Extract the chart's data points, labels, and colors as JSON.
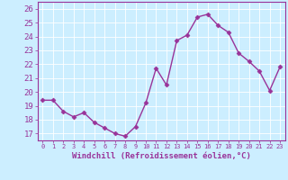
{
  "x": [
    0,
    1,
    2,
    3,
    4,
    5,
    6,
    7,
    8,
    9,
    10,
    11,
    12,
    13,
    14,
    15,
    16,
    17,
    18,
    19,
    20,
    21,
    22,
    23
  ],
  "y": [
    19.4,
    19.4,
    18.6,
    18.2,
    18.5,
    17.8,
    17.4,
    17.0,
    16.8,
    17.5,
    19.2,
    21.7,
    20.5,
    23.7,
    24.1,
    25.4,
    25.6,
    24.8,
    24.3,
    22.8,
    22.2,
    21.5,
    20.1,
    21.8
  ],
  "line_color": "#993399",
  "marker": "D",
  "markersize": 2.5,
  "linewidth": 1.0,
  "xlabel": "Windchill (Refroidissement éolien,°C)",
  "ylim": [
    16.5,
    26.5
  ],
  "yticks": [
    17,
    18,
    19,
    20,
    21,
    22,
    23,
    24,
    25,
    26
  ],
  "xlim": [
    -0.5,
    23.5
  ],
  "xticks": [
    0,
    1,
    2,
    3,
    4,
    5,
    6,
    7,
    8,
    9,
    10,
    11,
    12,
    13,
    14,
    15,
    16,
    17,
    18,
    19,
    20,
    21,
    22,
    23
  ],
  "bg_color": "#cceeff",
  "grid_color": "#ffffff",
  "label_color": "#993399",
  "tick_color": "#993399",
  "xlabel_fontsize": 6.5,
  "ytick_fontsize": 6.5,
  "xtick_fontsize": 5.0
}
